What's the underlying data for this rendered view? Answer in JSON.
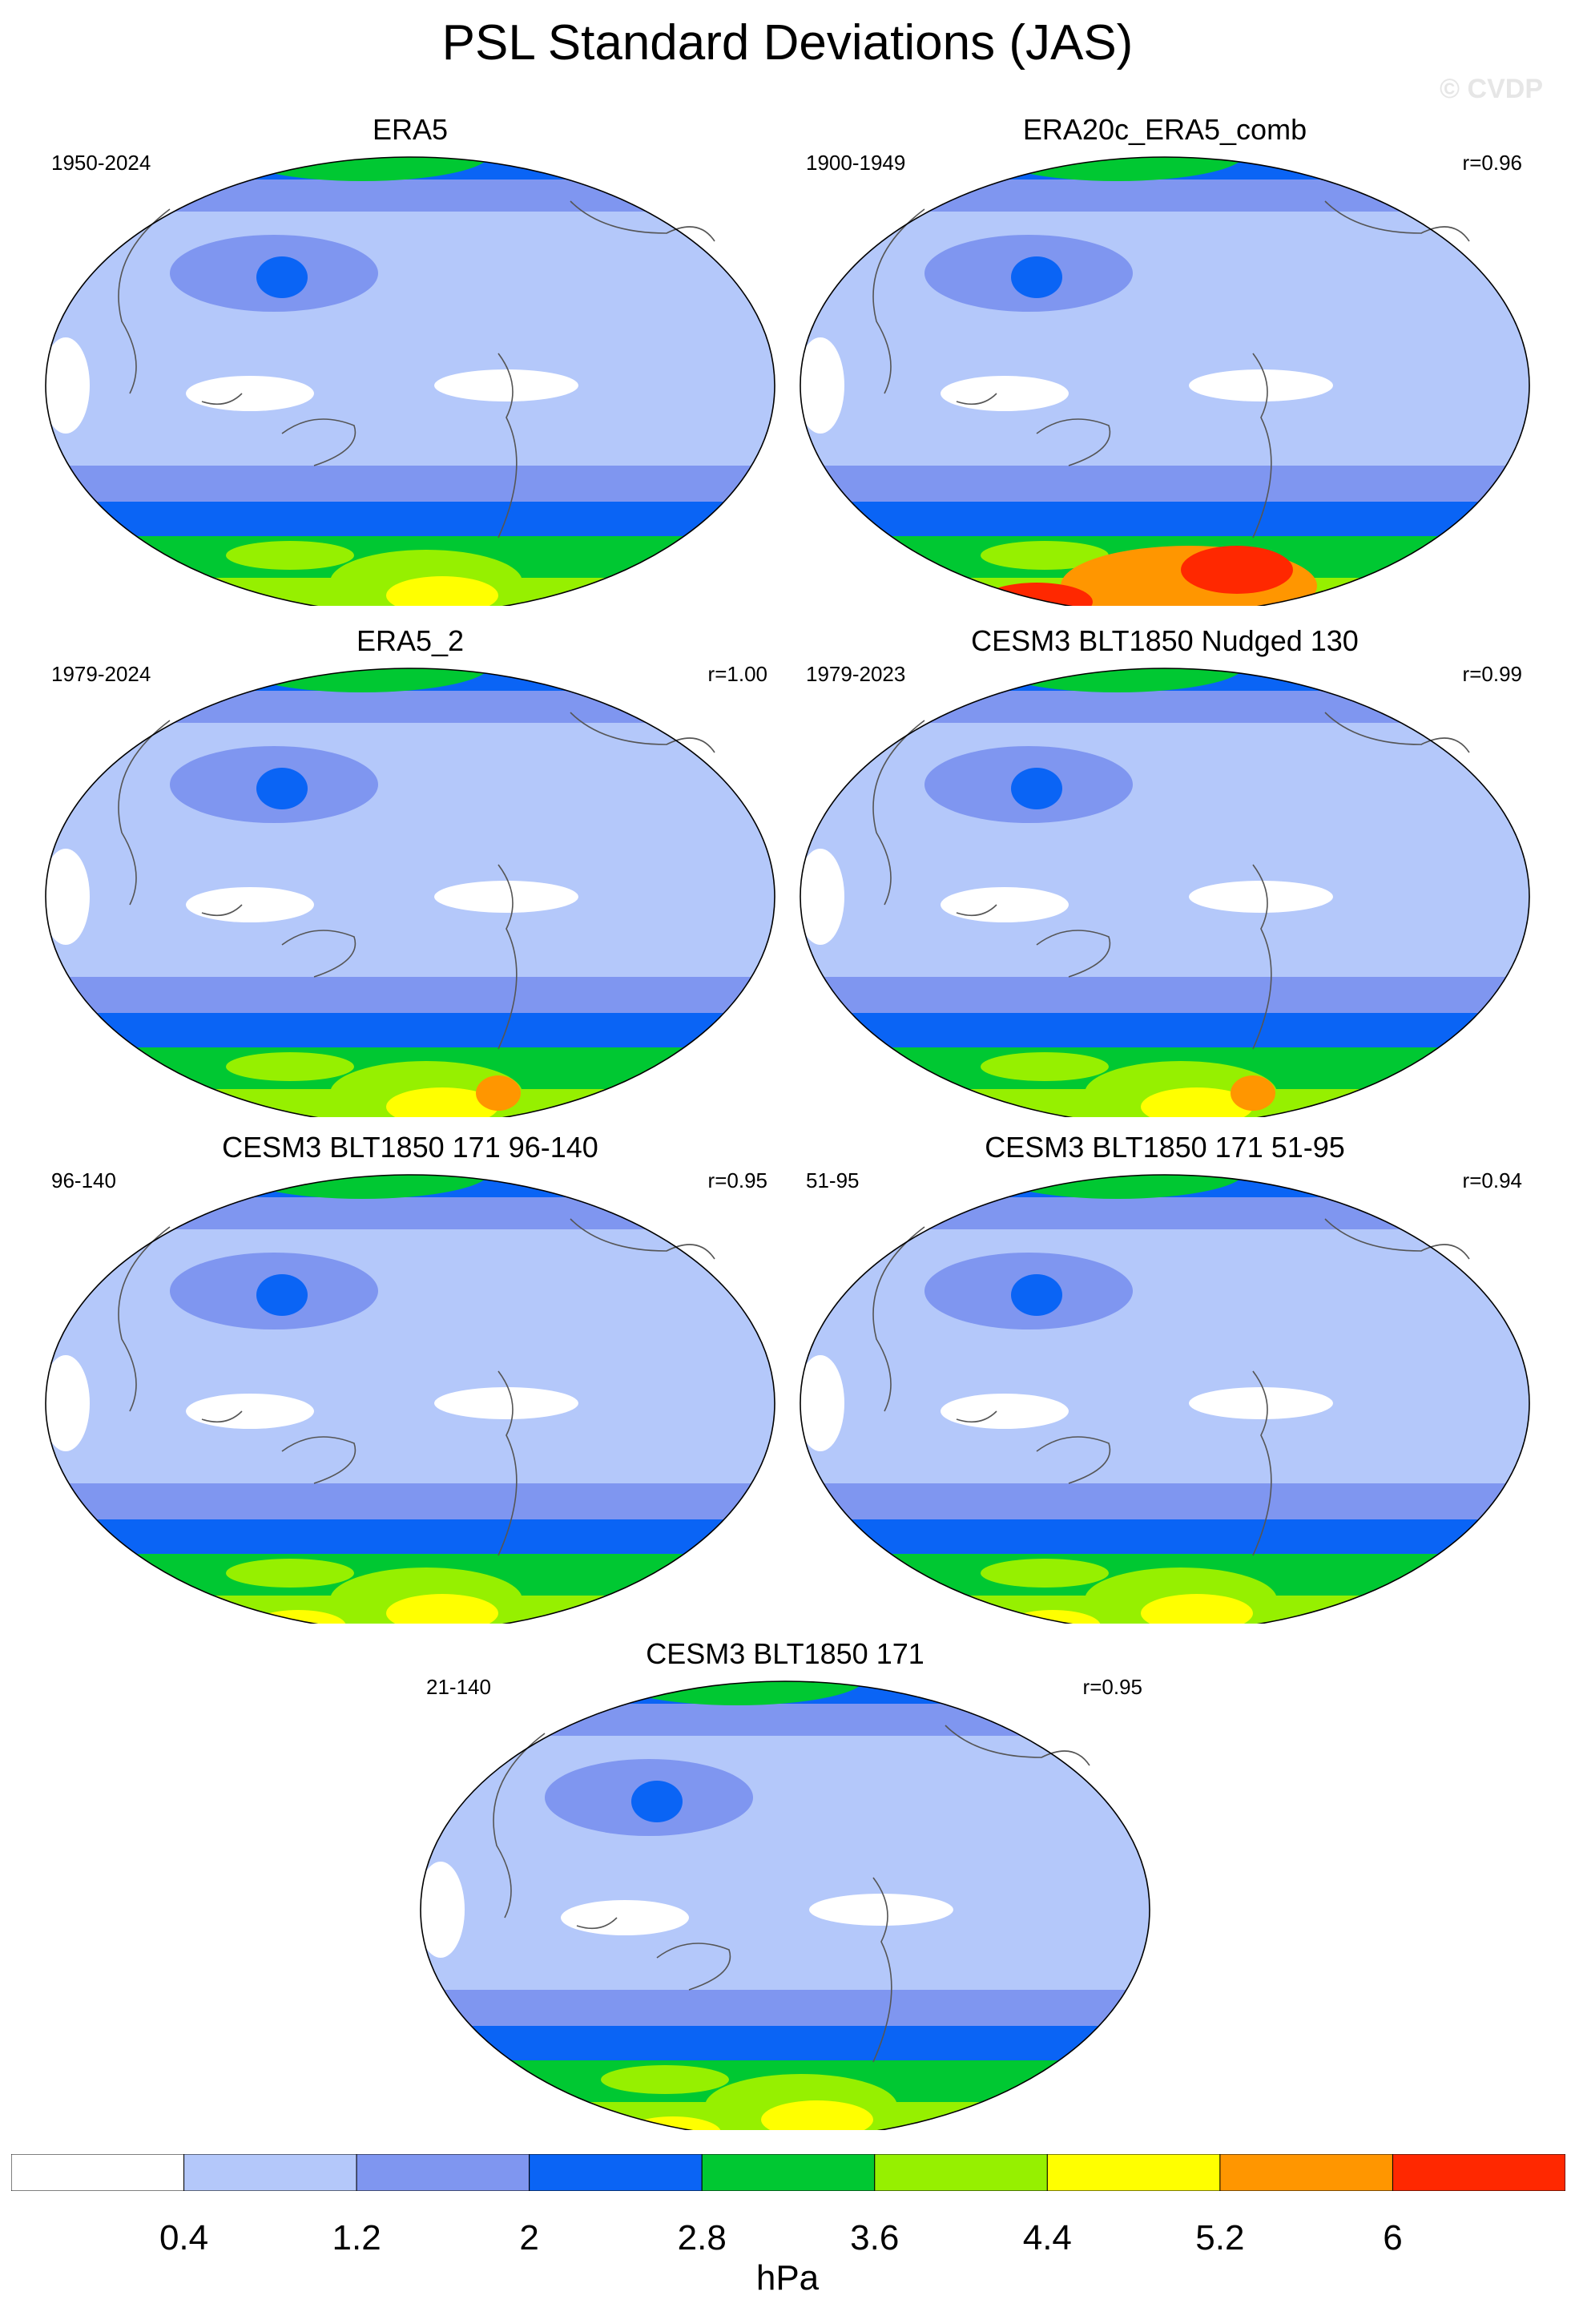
{
  "title": "PSL Standard Deviations (JAS)",
  "watermark": "© CVDP",
  "panels": [
    {
      "title": "ERA5",
      "period": "1950-2024",
      "corr": ""
    },
    {
      "title": "ERA20c_ERA5_comb",
      "period": "1900-1949",
      "corr": "r=0.96"
    },
    {
      "title": "ERA5_2",
      "period": "1979-2024",
      "corr": "r=1.00"
    },
    {
      "title": "CESM3 BLT1850 Nudged 130",
      "period": "1979-2023",
      "corr": "r=0.99"
    },
    {
      "title": "CESM3 BLT1850 171 96-140",
      "period": "96-140",
      "corr": "r=0.95"
    },
    {
      "title": "CESM3 BLT1850 171 51-95",
      "period": "51-95",
      "corr": "r=0.94"
    },
    {
      "title": "CESM3 BLT1850 171",
      "period": "21-140",
      "corr": "r=0.95"
    }
  ],
  "colorbar": {
    "units": "hPa",
    "levels": [
      "0.4",
      "1.2",
      "2",
      "2.8",
      "3.6",
      "4.4",
      "5.2",
      "6"
    ],
    "colors": [
      "#ffffff",
      "#b4c8fa",
      "#7f96f0",
      "#0a64f5",
      "#00c832",
      "#96f000",
      "#ffff00",
      "#ff9600",
      "#ff2800"
    ]
  }
}
